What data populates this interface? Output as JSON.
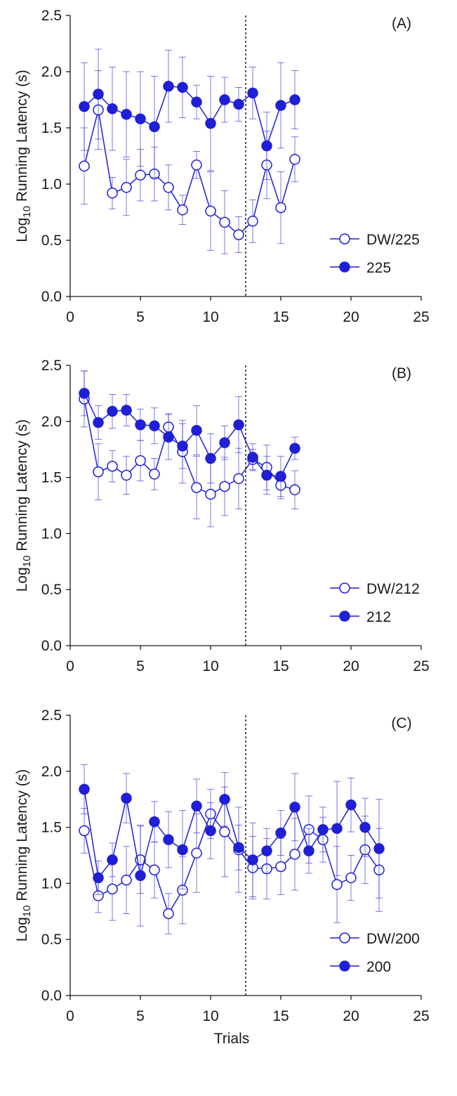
{
  "colors": {
    "series": "#1f1fd6",
    "axis": "#1a1a1a",
    "fill_open": "#ffffff"
  },
  "shared_xlabel": "Trials",
  "chart_data": [
    {
      "type": "scatter",
      "panel_label": "(A)",
      "ylabel_prefix": "Log",
      "ylabel_sub": "10",
      "ylabel_suffix": " Running Latency (s)",
      "xlabel": "",
      "xlim": [
        0,
        25
      ],
      "ylim": [
        0,
        2.5
      ],
      "x_ticks": [
        "0",
        "5",
        "10",
        "15",
        "20",
        "25"
      ],
      "y_ticks": [
        "0.0",
        "0.5",
        "1.0",
        "1.5",
        "2.0",
        "2.5"
      ],
      "divider_x": 12.5,
      "grid": false,
      "legend_position": "bottom-right",
      "series": [
        {
          "name": "DW/225",
          "marker": "open-circle",
          "x": [
            1,
            2,
            3,
            4,
            5,
            6,
            7,
            8,
            9,
            10,
            11,
            12,
            13,
            14,
            15,
            16
          ],
          "y": [
            1.16,
            1.66,
            0.92,
            0.97,
            1.08,
            1.09,
            0.97,
            0.77,
            1.17,
            0.76,
            0.66,
            0.55,
            0.67,
            1.17,
            0.79,
            1.22
          ],
          "err": [
            0.34,
            0.35,
            0.14,
            0.25,
            0.23,
            0.24,
            0.2,
            0.13,
            0.12,
            0.35,
            0.28,
            0.16,
            0.19,
            0.3,
            0.32,
            0.2
          ]
        },
        {
          "name": "225",
          "marker": "filled-circle",
          "x": [
            1,
            2,
            3,
            4,
            5,
            6,
            7,
            8,
            9,
            10,
            11,
            12,
            13,
            14,
            15,
            16
          ],
          "y": [
            1.69,
            1.8,
            1.67,
            1.62,
            1.58,
            1.51,
            1.87,
            1.86,
            1.73,
            1.54,
            1.75,
            1.71,
            1.81,
            1.34,
            1.7,
            1.75
          ],
          "err": [
            0.39,
            0.4,
            0.37,
            0.38,
            0.42,
            0.45,
            0.32,
            0.27,
            0.15,
            0.42,
            0.2,
            0.15,
            0.23,
            0.3,
            0.38,
            0.26
          ]
        }
      ]
    },
    {
      "type": "scatter",
      "panel_label": "(B)",
      "ylabel_prefix": "Log",
      "ylabel_sub": "10",
      "ylabel_suffix": " Running Latency (s)",
      "xlabel": "",
      "xlim": [
        0,
        25
      ],
      "ylim": [
        0,
        2.5
      ],
      "x_ticks": [
        "0",
        "5",
        "10",
        "15",
        "20",
        "25"
      ],
      "y_ticks": [
        "0.0",
        "0.5",
        "1.0",
        "1.5",
        "2.0",
        "2.5"
      ],
      "divider_x": 12.5,
      "grid": false,
      "legend_position": "bottom-right",
      "series": [
        {
          "name": "DW/212",
          "marker": "open-circle",
          "x": [
            1,
            2,
            3,
            4,
            5,
            6,
            7,
            8,
            9,
            10,
            11,
            12,
            13,
            14,
            15,
            16
          ],
          "y": [
            2.2,
            1.55,
            1.6,
            1.52,
            1.65,
            1.53,
            1.95,
            1.73,
            1.41,
            1.35,
            1.42,
            1.49,
            1.66,
            1.59,
            1.43,
            1.39
          ],
          "err": [
            0.25,
            0.25,
            0.14,
            0.17,
            0.18,
            0.14,
            0.12,
            0.28,
            0.28,
            0.29,
            0.26,
            0.27,
            0.09,
            0.2,
            0.12,
            0.17
          ]
        },
        {
          "name": "212",
          "marker": "filled-circle",
          "x": [
            1,
            2,
            3,
            4,
            5,
            6,
            7,
            8,
            9,
            10,
            11,
            12,
            13,
            14,
            15,
            16
          ],
          "y": [
            2.25,
            1.99,
            2.09,
            2.1,
            1.97,
            1.96,
            1.86,
            1.78,
            1.92,
            1.67,
            1.81,
            1.97,
            1.68,
            1.52,
            1.51,
            1.76
          ],
          "err": [
            0.2,
            0.15,
            0.15,
            0.14,
            0.14,
            0.16,
            0.2,
            0.2,
            0.22,
            0.22,
            0.15,
            0.25,
            0.12,
            0.17,
            0.18,
            0.1
          ]
        }
      ]
    },
    {
      "type": "scatter",
      "panel_label": "(C)",
      "ylabel_prefix": "Log",
      "ylabel_sub": "10",
      "ylabel_suffix": " Running Latency (s)",
      "xlabel": "Trials",
      "xlim": [
        0,
        25
      ],
      "ylim": [
        0,
        2.5
      ],
      "x_ticks": [
        "0",
        "5",
        "10",
        "15",
        "20",
        "25"
      ],
      "y_ticks": [
        "0.0",
        "0.5",
        "1.0",
        "1.5",
        "2.0",
        "2.5"
      ],
      "divider_x": 12.5,
      "grid": false,
      "legend_position": "bottom-right",
      "series": [
        {
          "name": "DW/200",
          "marker": "open-circle",
          "x": [
            1,
            2,
            3,
            4,
            5,
            6,
            7,
            8,
            9,
            10,
            11,
            12,
            13,
            14,
            15,
            16,
            17,
            18,
            19,
            20,
            21,
            22
          ],
          "y": [
            1.47,
            0.89,
            0.95,
            1.03,
            1.21,
            1.12,
            0.73,
            0.94,
            1.27,
            1.62,
            1.46,
            1.3,
            1.14,
            1.13,
            1.15,
            1.26,
            1.48,
            1.39,
            0.99,
            1.05,
            1.3,
            1.12
          ],
          "err": [
            0.2,
            0.15,
            0.28,
            0.3,
            0.3,
            0.25,
            0.18,
            0.3,
            0.35,
            0.22,
            0.4,
            0.38,
            0.28,
            0.27,
            0.25,
            0.32,
            0.3,
            0.2,
            0.34,
            0.2,
            0.3,
            0.37
          ]
        },
        {
          "name": "200",
          "marker": "filled-circle",
          "x": [
            1,
            2,
            3,
            4,
            5,
            6,
            7,
            8,
            9,
            10,
            11,
            12,
            13,
            14,
            15,
            16,
            17,
            18,
            19,
            20,
            21,
            22
          ],
          "y": [
            1.84,
            1.05,
            1.21,
            1.76,
            1.07,
            1.55,
            1.39,
            1.3,
            1.69,
            1.47,
            1.75,
            1.32,
            1.21,
            1.29,
            1.45,
            1.68,
            1.29,
            1.48,
            1.49,
            1.7,
            1.5,
            1.31
          ],
          "err": [
            0.22,
            0.15,
            0.15,
            0.22,
            0.45,
            0.18,
            0.25,
            0.35,
            0.24,
            0.25,
            0.24,
            0.2,
            0.33,
            0.2,
            0.2,
            0.3,
            0.2,
            0.2,
            0.42,
            0.24,
            0.26,
            0.44
          ]
        }
      ]
    }
  ]
}
